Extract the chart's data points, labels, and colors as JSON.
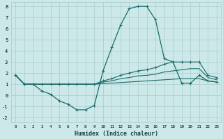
{
  "xlabel": "Humidex (Indice chaleur)",
  "bg_color": "#cce8e8",
  "grid_color": "#aacccc",
  "line_color": "#1a6b6b",
  "xlim": [
    -0.5,
    23.5
  ],
  "ylim": [
    -2.4,
    8.4
  ],
  "xticks": [
    0,
    1,
    2,
    3,
    4,
    5,
    6,
    7,
    8,
    9,
    10,
    11,
    12,
    13,
    14,
    15,
    16,
    17,
    18,
    19,
    20,
    21,
    22,
    23
  ],
  "yticks": [
    -2,
    -1,
    0,
    1,
    2,
    3,
    4,
    5,
    6,
    7,
    8
  ],
  "line1_x": [
    0,
    1,
    2,
    3,
    4,
    5,
    6,
    7,
    8,
    9,
    10,
    11,
    12,
    13,
    14,
    15,
    16,
    17,
    18,
    19,
    20,
    21,
    22,
    23
  ],
  "line1_y": [
    1.8,
    1.0,
    1.0,
    0.4,
    0.1,
    -0.5,
    -0.8,
    -1.3,
    -1.3,
    -0.9,
    2.2,
    4.3,
    6.3,
    7.8,
    8.0,
    8.0,
    6.8,
    3.3,
    3.0,
    1.1,
    1.1,
    1.8,
    1.3,
    1.2
  ],
  "line2_x": [
    0,
    1,
    2,
    3,
    4,
    5,
    6,
    7,
    8,
    9,
    10,
    11,
    12,
    13,
    14,
    15,
    16,
    17,
    18,
    19,
    20,
    21,
    22,
    23
  ],
  "line2_y": [
    1.8,
    1.0,
    1.0,
    1.0,
    1.0,
    1.0,
    1.0,
    1.0,
    1.0,
    1.0,
    1.3,
    1.5,
    1.8,
    2.0,
    2.2,
    2.3,
    2.5,
    2.8,
    3.0,
    3.0,
    3.0,
    3.0,
    1.8,
    1.6
  ],
  "line3_x": [
    0,
    1,
    2,
    3,
    4,
    5,
    6,
    7,
    8,
    9,
    10,
    11,
    12,
    13,
    14,
    15,
    16,
    17,
    18,
    19,
    20,
    21,
    22,
    23
  ],
  "line3_y": [
    1.8,
    1.0,
    1.0,
    1.0,
    1.0,
    1.0,
    1.0,
    1.0,
    1.0,
    1.0,
    1.2,
    1.3,
    1.5,
    1.6,
    1.75,
    1.8,
    1.9,
    2.1,
    2.2,
    2.3,
    2.4,
    2.4,
    1.6,
    1.4
  ],
  "line4_x": [
    0,
    1,
    2,
    3,
    4,
    5,
    6,
    7,
    8,
    9,
    10,
    11,
    12,
    13,
    14,
    15,
    16,
    17,
    18,
    19,
    20,
    21,
    22,
    23
  ],
  "line4_y": [
    1.8,
    1.0,
    1.0,
    1.0,
    1.0,
    1.0,
    1.0,
    1.0,
    1.0,
    1.0,
    1.05,
    1.1,
    1.15,
    1.2,
    1.25,
    1.3,
    1.35,
    1.4,
    1.45,
    1.5,
    1.5,
    1.5,
    1.3,
    1.2
  ]
}
